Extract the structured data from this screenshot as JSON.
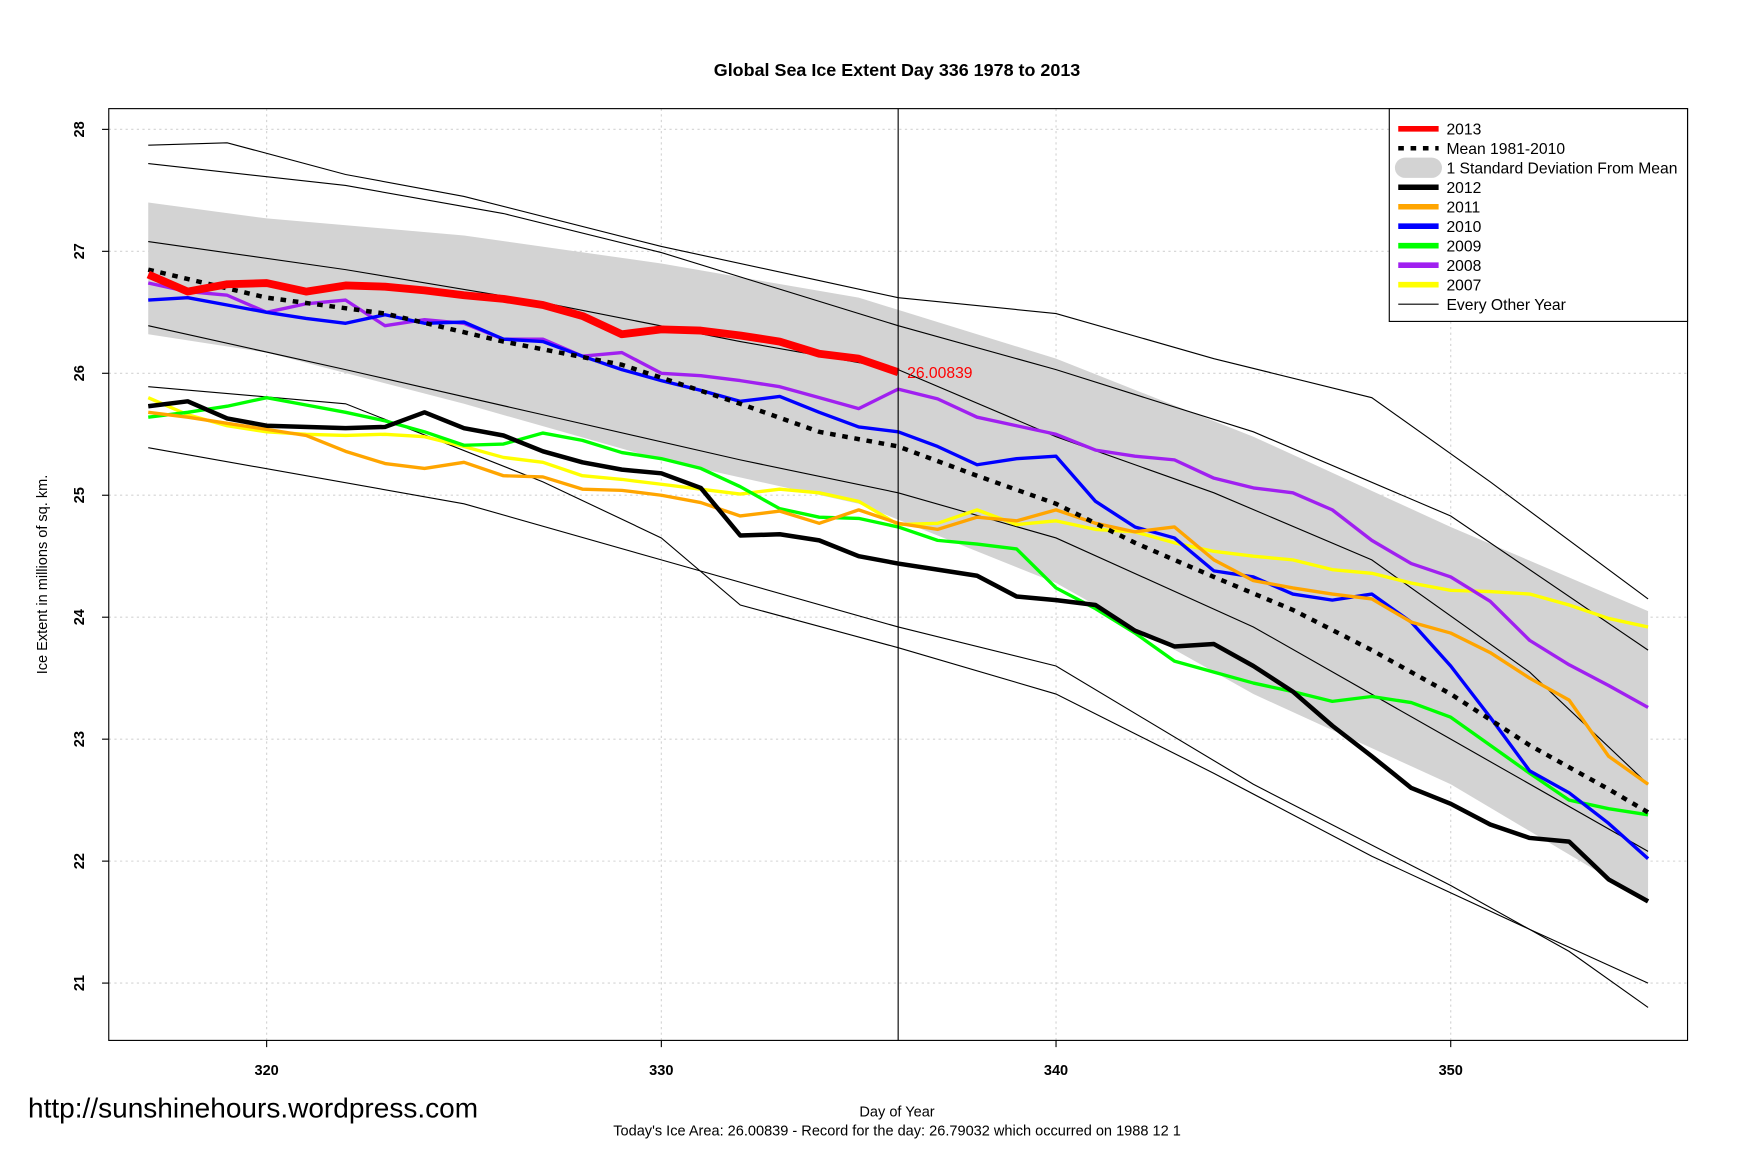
{
  "chart_data": {
    "type": "line",
    "title": "Global Sea Ice Extent Day 336 1978 to 2013",
    "x_label": "Day of Year",
    "y_label": "Ice Extent in millions of sq. km.",
    "footer": "Today's Ice Area: 26.00839  - Record for the day: 26.79032 which occurred on 1988 12 1",
    "watermark": "http://sunshinehours.wordpress.com",
    "annotation": "26.00839",
    "vline": 336,
    "xlim": [
      316,
      356
    ],
    "ylim": [
      20.53,
      28.17
    ],
    "xticks": [
      320,
      330,
      340,
      350
    ],
    "yticks": [
      21,
      22,
      23,
      24,
      25,
      26,
      27,
      28
    ],
    "grid": true,
    "legend": "top-right",
    "series": [
      {
        "name": "2013",
        "color": "#ff0000",
        "width": 7,
        "x": [
          317,
          318,
          319,
          320,
          321,
          322,
          323,
          324,
          325,
          326,
          327,
          328,
          329,
          330,
          331,
          332,
          333,
          334,
          335,
          336
        ],
        "values": [
          26.81,
          26.67,
          26.73,
          26.74,
          26.67,
          26.72,
          26.71,
          26.68,
          26.64,
          26.61,
          26.56,
          26.47,
          26.32,
          26.36,
          26.35,
          26.31,
          26.26,
          26.16,
          26.12,
          26.00839
        ]
      },
      {
        "name": "Mean 1981-2010",
        "color": "#000000",
        "width": 4,
        "dash": true,
        "x": [
          317,
          320,
          323,
          326,
          329,
          332,
          334,
          336,
          338,
          340,
          342,
          344,
          346,
          348,
          350,
          352,
          354,
          355
        ],
        "values": [
          26.85,
          26.62,
          26.49,
          26.26,
          26.07,
          25.75,
          25.52,
          25.4,
          25.16,
          24.93,
          24.61,
          24.33,
          24.06,
          23.73,
          23.37,
          22.95,
          22.59,
          22.4
        ]
      },
      {
        "name": "1 Standard Deviation From Mean",
        "color": "#d3d3d3",
        "kind": "band",
        "x": [
          317,
          320,
          325,
          330,
          335,
          340,
          345,
          350,
          355
        ],
        "upper": [
          27.4,
          27.27,
          27.13,
          26.9,
          26.62,
          26.12,
          25.48,
          24.74,
          24.05
        ],
        "lower": [
          26.32,
          26.17,
          25.75,
          25.29,
          24.93,
          24.28,
          23.37,
          22.63,
          21.67
        ]
      },
      {
        "name": "2012",
        "color": "#000000",
        "width": 4,
        "x": [
          317,
          318,
          319,
          320,
          322,
          323,
          324,
          325,
          326,
          327,
          328,
          329,
          330,
          331,
          332,
          333,
          334,
          335,
          336,
          337,
          338,
          339,
          340,
          341,
          342,
          343,
          344,
          345,
          346,
          347,
          348,
          349,
          350,
          351,
          352,
          353,
          354,
          355
        ],
        "values": [
          25.73,
          25.77,
          25.63,
          25.57,
          25.55,
          25.56,
          25.68,
          25.55,
          25.49,
          25.36,
          25.27,
          25.21,
          25.18,
          25.06,
          24.67,
          24.68,
          24.63,
          24.5,
          24.44,
          24.39,
          24.34,
          24.17,
          24.14,
          24.1,
          23.89,
          23.76,
          23.78,
          23.6,
          23.39,
          23.11,
          22.86,
          22.6,
          22.47,
          22.3,
          22.19,
          22.16,
          21.85,
          21.67
        ]
      },
      {
        "name": "2011",
        "color": "#ffa500",
        "width": 3,
        "x": [
          317,
          318,
          319,
          320,
          321,
          322,
          323,
          324,
          325,
          326,
          327,
          328,
          329,
          330,
          331,
          332,
          333,
          334,
          335,
          336,
          337,
          338,
          339,
          340,
          341,
          342,
          343,
          344,
          345,
          346,
          347,
          348,
          349,
          350,
          351,
          352,
          353,
          354,
          355
        ],
        "values": [
          25.68,
          25.64,
          25.59,
          25.54,
          25.49,
          25.36,
          25.26,
          25.22,
          25.27,
          25.16,
          25.15,
          25.05,
          25.04,
          25.0,
          24.94,
          24.83,
          24.87,
          24.77,
          24.88,
          24.77,
          24.72,
          24.82,
          24.79,
          24.88,
          24.77,
          24.7,
          24.74,
          24.47,
          24.3,
          24.24,
          24.19,
          24.15,
          23.96,
          23.87,
          23.71,
          23.5,
          23.32,
          22.86,
          22.63
        ]
      },
      {
        "name": "2010",
        "color": "#0000ff",
        "width": 3,
        "x": [
          317,
          318,
          319,
          320,
          321,
          322,
          323,
          324,
          325,
          326,
          327,
          328,
          329,
          330,
          331,
          332,
          333,
          334,
          335,
          336,
          337,
          338,
          339,
          340,
          341,
          342,
          343,
          344,
          345,
          346,
          347,
          348,
          349,
          350,
          351,
          352,
          353,
          354,
          355
        ],
        "values": [
          26.6,
          26.62,
          26.56,
          26.5,
          26.45,
          26.41,
          26.48,
          26.41,
          26.42,
          26.28,
          26.26,
          26.14,
          26.03,
          25.94,
          25.86,
          25.77,
          25.81,
          25.68,
          25.56,
          25.52,
          25.4,
          25.25,
          25.3,
          25.32,
          24.95,
          24.74,
          24.65,
          24.38,
          24.33,
          24.19,
          24.14,
          24.19,
          23.96,
          23.6,
          23.18,
          22.74,
          22.56,
          22.31,
          22.02
        ]
      },
      {
        "name": "2009",
        "color": "#00ff00",
        "width": 3,
        "x": [
          317,
          318,
          319,
          320,
          321,
          322,
          323,
          324,
          325,
          326,
          327,
          328,
          329,
          330,
          331,
          332,
          333,
          334,
          335,
          336,
          337,
          338,
          339,
          340,
          341,
          342,
          343,
          344,
          345,
          346,
          347,
          348,
          349,
          350,
          351,
          352,
          353,
          354,
          355
        ],
        "values": [
          25.64,
          25.68,
          25.73,
          25.8,
          25.74,
          25.68,
          25.61,
          25.52,
          25.41,
          25.42,
          25.51,
          25.45,
          25.35,
          25.3,
          25.22,
          25.07,
          24.89,
          24.82,
          24.81,
          24.74,
          24.63,
          24.6,
          24.56,
          24.24,
          24.07,
          23.87,
          23.64,
          23.55,
          23.46,
          23.39,
          23.31,
          23.35,
          23.3,
          23.18,
          22.95,
          22.72,
          22.5,
          22.43,
          22.38
        ]
      },
      {
        "name": "2008",
        "color": "#a020f0",
        "width": 3,
        "x": [
          317,
          318,
          319,
          320,
          321,
          322,
          323,
          324,
          325,
          326,
          327,
          328,
          329,
          330,
          331,
          332,
          333,
          334,
          335,
          336,
          337,
          338,
          339,
          340,
          341,
          342,
          343,
          344,
          345,
          346,
          347,
          348,
          349,
          350,
          351,
          352,
          353,
          354,
          355
        ],
        "values": [
          26.74,
          26.67,
          26.64,
          26.5,
          26.57,
          26.6,
          26.39,
          26.44,
          26.41,
          26.28,
          26.28,
          26.14,
          26.17,
          26.0,
          25.98,
          25.94,
          25.89,
          25.8,
          25.71,
          25.87,
          25.79,
          25.64,
          25.57,
          25.5,
          25.37,
          25.32,
          25.29,
          25.14,
          25.06,
          25.02,
          24.88,
          24.63,
          24.44,
          24.33,
          24.13,
          23.81,
          23.61,
          23.44,
          23.26
        ]
      },
      {
        "name": "2007",
        "color": "#ffff00",
        "width": 3,
        "x": [
          317,
          318,
          319,
          320,
          321,
          322,
          323,
          324,
          325,
          326,
          327,
          328,
          329,
          330,
          331,
          332,
          333,
          334,
          335,
          336,
          337,
          338,
          339,
          340,
          341,
          342,
          343,
          344,
          345,
          346,
          347,
          348,
          349,
          350,
          351,
          352,
          353,
          354,
          355
        ],
        "values": [
          25.8,
          25.66,
          25.57,
          25.52,
          25.5,
          25.49,
          25.5,
          25.48,
          25.4,
          25.31,
          25.27,
          25.16,
          25.13,
          25.09,
          25.05,
          25.01,
          25.05,
          25.02,
          24.95,
          24.76,
          24.77,
          24.88,
          24.76,
          24.79,
          24.72,
          24.7,
          24.61,
          24.54,
          24.5,
          24.47,
          24.39,
          24.36,
          24.28,
          24.22,
          24.21,
          24.19,
          24.1,
          23.99,
          23.92
        ]
      },
      {
        "name": "Every Other Year",
        "color": "#000000",
        "width": 1,
        "kind": "thin",
        "lines": [
          {
            "x": [
              317,
              319,
              322,
              325,
              330,
              334,
              336,
              340,
              344,
              348,
              351,
              355
            ],
            "values": [
              27.87,
              27.89,
              27.63,
              27.45,
              27.04,
              26.76,
              26.62,
              26.49,
              26.12,
              25.8,
              25.11,
              24.15
            ]
          },
          {
            "x": [
              317,
              322,
              326,
              330,
              336,
              340,
              345,
              350,
              355
            ],
            "values": [
              27.72,
              27.54,
              27.31,
              26.99,
              26.39,
              26.03,
              25.52,
              24.83,
              23.73
            ]
          },
          {
            "x": [
              317,
              322,
              327,
              332,
              336,
              340,
              344,
              348,
              352,
              355
            ],
            "values": [
              27.08,
              26.85,
              26.58,
              26.26,
              26.03,
              25.48,
              25.02,
              24.47,
              23.55,
              22.63
            ]
          },
          {
            "x": [
              317,
              322,
              327,
              332,
              336,
              340,
              345,
              350,
              355
            ],
            "values": [
              26.39,
              26.03,
              25.66,
              25.29,
              25.02,
              24.65,
              23.92,
              23.0,
              22.08
            ]
          },
          {
            "x": [
              317,
              322,
              327,
              330,
              332,
              336,
              340,
              344,
              348,
              352,
              355
            ],
            "values": [
              25.89,
              25.75,
              25.11,
              24.65,
              24.1,
              23.75,
              23.37,
              22.72,
              22.04,
              21.44,
              21.0
            ]
          },
          {
            "x": [
              317,
              325,
              330,
              336,
              340,
              345,
              350,
              353,
              355
            ],
            "values": [
              25.39,
              24.93,
              24.47,
              23.92,
              23.6,
              22.63,
              21.8,
              21.26,
              20.8
            ]
          }
        ]
      }
    ]
  }
}
